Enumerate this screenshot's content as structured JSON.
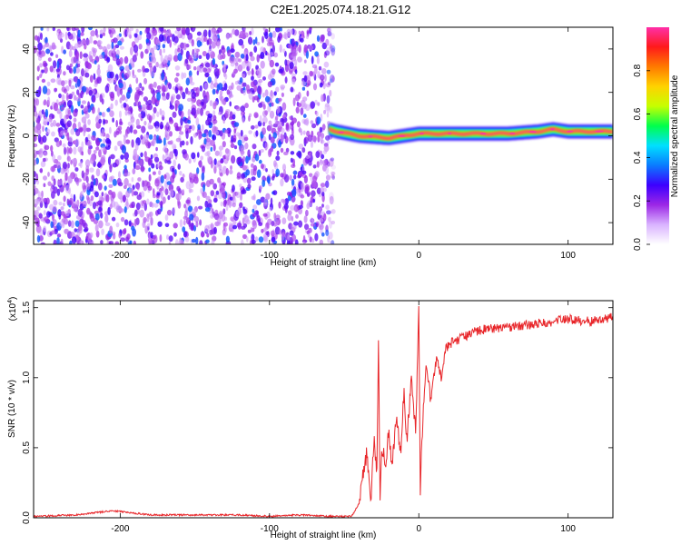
{
  "title": "C2E1.2025.074.18.21.G12",
  "chart_data": [
    {
      "type": "heatmap",
      "xlabel": "Height of straight line (km)",
      "ylabel": "Frequency (Hz)",
      "xlim": [
        -258,
        130
      ],
      "ylim": [
        -50,
        50
      ],
      "x_ticks": [
        -200,
        -100,
        0,
        100
      ],
      "x_tick_labels": [
        "-200",
        "-100",
        "0",
        "100"
      ],
      "y_ticks": [
        -40,
        -20,
        0,
        20,
        40
      ],
      "y_tick_labels": [
        "-40",
        "-20",
        "0",
        "20",
        "40"
      ],
      "noise_region_x": [
        -258,
        -57
      ],
      "noise_amplitude_range": [
        0.1,
        0.3
      ],
      "signal_band": {
        "x_start": -60,
        "x_end": 130,
        "center_freq_hz": [
          [
            -60,
            3
          ],
          [
            -55,
            2
          ],
          [
            -40,
            0
          ],
          [
            -20,
            -1
          ],
          [
            0,
            1
          ],
          [
            20,
            1
          ],
          [
            40,
            1
          ],
          [
            60,
            1
          ],
          [
            80,
            2
          ],
          [
            90,
            3
          ],
          [
            100,
            2
          ],
          [
            130,
            2
          ]
        ],
        "peak_amplitude": 1.0
      },
      "colorbar": {
        "label": "Normalized spectral amplitude",
        "range": [
          0,
          1
        ],
        "ticks": [
          0.0,
          0.2,
          0.4,
          0.6,
          0.8
        ],
        "tick_labels": [
          "0.0",
          "0.2",
          "0.4",
          "0.6",
          "0.8"
        ],
        "colors": [
          "#ffffff",
          "#d9b3ff",
          "#9c27e6",
          "#3c00ff",
          "#0a7bff",
          "#00e0ff",
          "#00ff4c",
          "#c6ff00",
          "#ffd200",
          "#ff7a00",
          "#ff1a1a",
          "#ff2fa8"
        ]
      }
    },
    {
      "type": "line",
      "xlabel": "Height of straight line (km)",
      "ylabel": "SNR (10 * v/v)",
      "scale_label": "(x10",
      "scale_exponent": "4",
      "scale_close": ")",
      "xlim": [
        -258,
        130
      ],
      "ylim": [
        0,
        1.55
      ],
      "x_ticks": [
        -200,
        -100,
        0,
        100
      ],
      "x_tick_labels": [
        "-200",
        "-100",
        "0",
        "100"
      ],
      "y_ticks": [
        0.0,
        0.5,
        1.0,
        1.5
      ],
      "y_tick_labels": [
        "0.0",
        "0.5",
        "1.0",
        "1.5"
      ],
      "series": [
        {
          "color": "#e8262a",
          "points": [
            [
              -258,
              0.01
            ],
            [
              -230,
              0.02
            ],
            [
              -205,
              0.05
            ],
            [
              -180,
              0.02
            ],
            [
              -150,
              0.02
            ],
            [
              -120,
              0.02
            ],
            [
              -100,
              0.01
            ],
            [
              -80,
              0.02
            ],
            [
              -60,
              0.01
            ],
            [
              -45,
              0.01
            ],
            [
              -40,
              0.1
            ],
            [
              -38,
              0.3
            ],
            [
              -35,
              0.45
            ],
            [
              -32,
              0.15
            ],
            [
              -30,
              0.55
            ],
            [
              -28,
              0.3
            ],
            [
              -27,
              1.3
            ],
            [
              -26,
              0.1
            ],
            [
              -25,
              0.5
            ],
            [
              -22,
              0.4
            ],
            [
              -20,
              0.65
            ],
            [
              -18,
              0.35
            ],
            [
              -15,
              0.75
            ],
            [
              -12,
              0.45
            ],
            [
              -10,
              0.9
            ],
            [
              -8,
              0.55
            ],
            [
              -5,
              1.0
            ],
            [
              -2,
              0.6
            ],
            [
              0,
              1.55
            ],
            [
              1,
              0.2
            ],
            [
              3,
              0.8
            ],
            [
              5,
              1.1
            ],
            [
              8,
              0.85
            ],
            [
              12,
              1.15
            ],
            [
              15,
              1.0
            ],
            [
              18,
              1.2
            ],
            [
              22,
              1.25
            ],
            [
              28,
              1.28
            ],
            [
              35,
              1.32
            ],
            [
              45,
              1.35
            ],
            [
              60,
              1.36
            ],
            [
              75,
              1.38
            ],
            [
              90,
              1.4
            ],
            [
              100,
              1.42
            ],
            [
              115,
              1.4
            ],
            [
              130,
              1.43
            ]
          ]
        }
      ]
    }
  ]
}
